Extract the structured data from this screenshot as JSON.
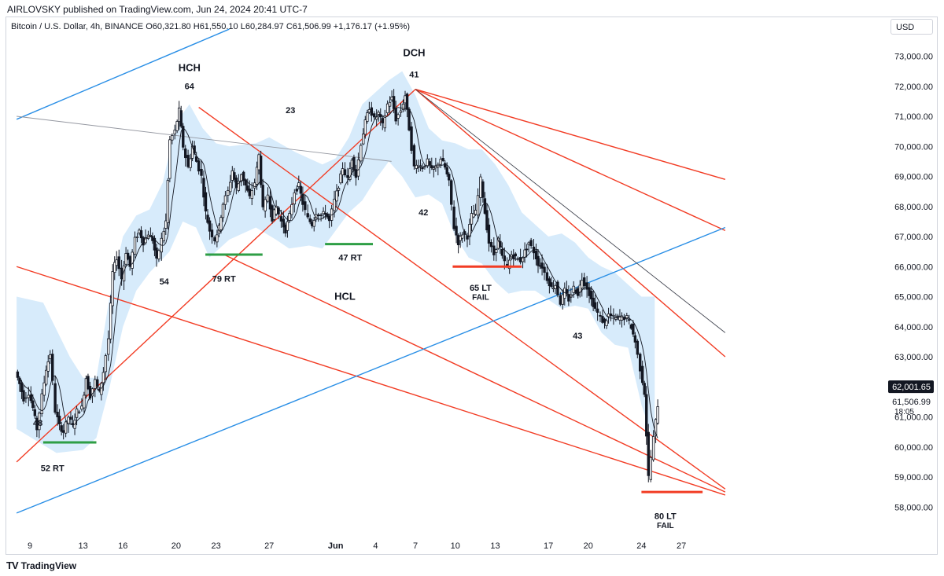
{
  "header": {
    "published": "AIRLOVSKY published on TradingView.com, Jun 24, 2024 20:41 UTC-7",
    "symbol": "Bitcoin / U.S. Dollar, 4h, BINANCE",
    "open": "O60,321.80",
    "high": "H61,550.10",
    "low": "L60,284.97",
    "close": "C61,506.99",
    "change": "+1,176.17 (+1.95%)"
  },
  "currency_button": "USD",
  "footer": {
    "logo": "TV",
    "brand": "TradingView"
  },
  "colors": {
    "up": "#131722",
    "red_line": "#f23c24",
    "blue_line": "#2a8fe6",
    "band": "#d7ebfb",
    "green": "#2e9e45",
    "grey_line": "#9598a1",
    "dark_line": "#434651"
  },
  "chart_data": {
    "type": "candlestick",
    "ylim": [
      57200,
      74200
    ],
    "y_ticks": [
      "73,000.00",
      "72,000.00",
      "71,000.00",
      "70,000.00",
      "69,000.00",
      "68,000.00",
      "67,000.00",
      "66,000.00",
      "65,000.00",
      "64,000.00",
      "63,000.00",
      "61,000.00",
      "60,000.00",
      "59,000.00",
      "58,000.00"
    ],
    "y_tick_values": [
      73000,
      72000,
      71000,
      70000,
      69000,
      68000,
      67000,
      66000,
      65000,
      64000,
      63000,
      61000,
      60000,
      59000,
      58000
    ],
    "x_ticks": [
      "9",
      "13",
      "16",
      "20",
      "23",
      "27",
      "Jun",
      "4",
      "7",
      "10",
      "13",
      "17",
      "20",
      "24",
      "27"
    ],
    "x_tick_days": [
      9,
      13,
      16,
      20,
      23,
      27,
      32,
      35,
      38,
      41,
      44,
      48,
      51,
      55,
      58
    ],
    "price_labels": {
      "last": "62,001.65",
      "current": "61,506.99",
      "countdown": "18:05",
      "last_value": 62001.65,
      "current_value": 61506.99
    },
    "price_path": [
      [
        8.0,
        62500
      ],
      [
        8.3,
        62100
      ],
      [
        8.6,
        61600
      ],
      [
        9.0,
        61800
      ],
      [
        9.3,
        61300
      ],
      [
        9.6,
        60600
      ],
      [
        10.0,
        61700
      ],
      [
        10.3,
        62600
      ],
      [
        10.6,
        63100
      ],
      [
        11.0,
        61200
      ],
      [
        11.3,
        60700
      ],
      [
        11.6,
        60500
      ],
      [
        12.0,
        61000
      ],
      [
        12.3,
        60700
      ],
      [
        12.6,
        61200
      ],
      [
        13.0,
        61300
      ],
      [
        13.3,
        62300
      ],
      [
        13.6,
        61700
      ],
      [
        14.0,
        62200
      ],
      [
        14.3,
        61800
      ],
      [
        14.6,
        62500
      ],
      [
        15.0,
        63600
      ],
      [
        15.3,
        65800
      ],
      [
        15.6,
        66300
      ],
      [
        16.0,
        65600
      ],
      [
        16.3,
        66500
      ],
      [
        16.6,
        66000
      ],
      [
        17.0,
        66900
      ],
      [
        17.3,
        67200
      ],
      [
        17.6,
        66800
      ],
      [
        18.0,
        67100
      ],
      [
        18.3,
        66900
      ],
      [
        18.6,
        66200
      ],
      [
        19.0,
        66900
      ],
      [
        19.3,
        67500
      ],
      [
        19.6,
        70200
      ],
      [
        20.0,
        70500
      ],
      [
        20.3,
        71200
      ],
      [
        20.6,
        70000
      ],
      [
        21.0,
        69300
      ],
      [
        21.3,
        70000
      ],
      [
        21.6,
        69500
      ],
      [
        22.0,
        69000
      ],
      [
        22.3,
        67800
      ],
      [
        22.6,
        67200
      ],
      [
        23.0,
        66900
      ],
      [
        23.3,
        67300
      ],
      [
        23.6,
        68100
      ],
      [
        24.0,
        68500
      ],
      [
        24.3,
        69200
      ],
      [
        24.6,
        68600
      ],
      [
        25.0,
        69100
      ],
      [
        25.3,
        68700
      ],
      [
        25.6,
        68300
      ],
      [
        26.0,
        68800
      ],
      [
        26.3,
        69700
      ],
      [
        26.6,
        67900
      ],
      [
        27.0,
        68400
      ],
      [
        27.3,
        67600
      ],
      [
        27.6,
        68000
      ],
      [
        28.0,
        67500
      ],
      [
        28.3,
        67200
      ],
      [
        28.6,
        67700
      ],
      [
        29.0,
        68500
      ],
      [
        29.3,
        68700
      ],
      [
        29.6,
        68100
      ],
      [
        30.0,
        67600
      ],
      [
        30.3,
        67400
      ],
      [
        30.6,
        67800
      ],
      [
        31.0,
        67700
      ],
      [
        31.3,
        67800
      ],
      [
        31.6,
        67500
      ],
      [
        32.0,
        68200
      ],
      [
        32.3,
        68700
      ],
      [
        32.6,
        69300
      ],
      [
        33.0,
        68900
      ],
      [
        33.3,
        69600
      ],
      [
        33.6,
        69000
      ],
      [
        34.0,
        70100
      ],
      [
        34.3,
        70800
      ],
      [
        34.6,
        71300
      ],
      [
        35.0,
        70900
      ],
      [
        35.3,
        71100
      ],
      [
        35.6,
        70700
      ],
      [
        36.0,
        71400
      ],
      [
        36.3,
        71600
      ],
      [
        36.6,
        70900
      ],
      [
        37.0,
        71200
      ],
      [
        37.3,
        71700
      ],
      [
        37.6,
        70600
      ],
      [
        38.0,
        69300
      ],
      [
        38.3,
        69400
      ],
      [
        38.6,
        69300
      ],
      [
        39.0,
        69500
      ],
      [
        39.3,
        69200
      ],
      [
        39.6,
        69300
      ],
      [
        40.0,
        69600
      ],
      [
        40.3,
        69300
      ],
      [
        40.6,
        68800
      ],
      [
        41.0,
        67300
      ],
      [
        41.3,
        66800
      ],
      [
        41.6,
        67100
      ],
      [
        42.0,
        67000
      ],
      [
        42.3,
        67700
      ],
      [
        42.6,
        67800
      ],
      [
        43.0,
        68900
      ],
      [
        43.3,
        67800
      ],
      [
        43.6,
        66800
      ],
      [
        44.0,
        66400
      ],
      [
        44.3,
        66900
      ],
      [
        44.6,
        66300
      ],
      [
        45.0,
        66000
      ],
      [
        45.3,
        66400
      ],
      [
        45.6,
        66300
      ],
      [
        46.0,
        66200
      ],
      [
        46.3,
        66500
      ],
      [
        46.6,
        66800
      ],
      [
        47.0,
        66500
      ],
      [
        47.3,
        66100
      ],
      [
        47.6,
        66000
      ],
      [
        48.0,
        65600
      ],
      [
        48.3,
        65300
      ],
      [
        48.6,
        65400
      ],
      [
        49.0,
        64800
      ],
      [
        49.3,
        65200
      ],
      [
        49.6,
        64900
      ],
      [
        50.0,
        65300
      ],
      [
        50.3,
        65100
      ],
      [
        50.6,
        65600
      ],
      [
        51.0,
        65300
      ],
      [
        51.3,
        64900
      ],
      [
        51.6,
        64600
      ],
      [
        52.0,
        64300
      ],
      [
        52.3,
        64100
      ],
      [
        52.6,
        64400
      ],
      [
        53.0,
        64300
      ],
      [
        53.3,
        64300
      ],
      [
        53.6,
        64300
      ],
      [
        54.0,
        64300
      ],
      [
        54.3,
        64000
      ],
      [
        54.6,
        63500
      ],
      [
        55.0,
        62600
      ],
      [
        55.3,
        61800
      ],
      [
        55.6,
        59000
      ],
      [
        56.0,
        60300
      ],
      [
        56.3,
        61400
      ]
    ],
    "band_lower": [
      [
        8.0,
        60600
      ],
      [
        11.0,
        59800
      ],
      [
        13.0,
        59900
      ],
      [
        14.0,
        60300
      ],
      [
        15.0,
        62000
      ],
      [
        16.0,
        64000
      ],
      [
        17.0,
        65200
      ],
      [
        18.0,
        65800
      ],
      [
        19.5,
        66500
      ],
      [
        20.5,
        67500
      ],
      [
        21.5,
        67300
      ],
      [
        22.5,
        66300
      ],
      [
        24.0,
        66900
      ],
      [
        26.0,
        67300
      ],
      [
        27.5,
        66900
      ],
      [
        28.5,
        66600
      ],
      [
        30.0,
        66700
      ],
      [
        31.0,
        66600
      ],
      [
        32.0,
        67200
      ],
      [
        33.0,
        67800
      ],
      [
        34.0,
        68200
      ],
      [
        35.0,
        68900
      ],
      [
        36.0,
        69500
      ],
      [
        37.0,
        69000
      ],
      [
        38.0,
        68300
      ],
      [
        39.0,
        68400
      ],
      [
        40.0,
        68100
      ],
      [
        41.0,
        67000
      ],
      [
        42.0,
        66300
      ],
      [
        43.0,
        66100
      ],
      [
        44.0,
        65500
      ],
      [
        45.0,
        65100
      ],
      [
        46.0,
        65200
      ],
      [
        47.0,
        65200
      ],
      [
        48.0,
        64900
      ],
      [
        49.0,
        64600
      ],
      [
        50.0,
        64700
      ],
      [
        51.0,
        64600
      ],
      [
        52.0,
        63800
      ],
      [
        53.0,
        63400
      ],
      [
        54.0,
        63300
      ],
      [
        55.0,
        61400
      ],
      [
        56.0,
        60100
      ]
    ],
    "band_upper": [
      [
        8.0,
        65000
      ],
      [
        10.0,
        64800
      ],
      [
        12.0,
        63000
      ],
      [
        13.0,
        62300
      ],
      [
        14.0,
        62300
      ],
      [
        15.0,
        65000
      ],
      [
        16.0,
        67000
      ],
      [
        17.0,
        67700
      ],
      [
        18.0,
        67900
      ],
      [
        19.0,
        68800
      ],
      [
        20.0,
        70800
      ],
      [
        21.0,
        71400
      ],
      [
        22.0,
        70600
      ],
      [
        23.0,
        70100
      ],
      [
        24.0,
        70000
      ],
      [
        26.0,
        70100
      ],
      [
        27.0,
        70300
      ],
      [
        29.0,
        69800
      ],
      [
        31.0,
        69400
      ],
      [
        32.0,
        69600
      ],
      [
        33.0,
        70300
      ],
      [
        34.0,
        71400
      ],
      [
        35.0,
        71800
      ],
      [
        36.0,
        72200
      ],
      [
        37.0,
        72500
      ],
      [
        38.0,
        71700
      ],
      [
        39.0,
        70600
      ],
      [
        40.0,
        70200
      ],
      [
        41.0,
        70100
      ],
      [
        42.0,
        69900
      ],
      [
        43.0,
        69900
      ],
      [
        44.0,
        69400
      ],
      [
        45.0,
        68700
      ],
      [
        46.0,
        67800
      ],
      [
        47.0,
        67400
      ],
      [
        48.0,
        67000
      ],
      [
        49.0,
        67100
      ],
      [
        50.0,
        66800
      ],
      [
        51.0,
        66300
      ],
      [
        52.0,
        66000
      ],
      [
        53.0,
        65800
      ],
      [
        54.0,
        65400
      ],
      [
        55.0,
        65000
      ],
      [
        56.0,
        65000
      ]
    ],
    "lines": [
      {
        "color": "red",
        "p1": [
          8.0,
          59500
        ],
        "p2": [
          38.0,
          71900
        ]
      },
      {
        "color": "red",
        "p1": [
          8.0,
          66000
        ],
        "p2": [
          61.3,
          58400
        ]
      },
      {
        "color": "red",
        "p1": [
          21.7,
          71300
        ],
        "p2": [
          61.3,
          58600
        ]
      },
      {
        "color": "red",
        "p1": [
          23.6,
          66400
        ],
        "p2": [
          61.3,
          58500
        ]
      },
      {
        "color": "red",
        "p1": [
          38.0,
          71900
        ],
        "p2": [
          61.3,
          63000
        ]
      },
      {
        "color": "red",
        "p1": [
          38.0,
          71900
        ],
        "p2": [
          61.3,
          67200
        ]
      },
      {
        "color": "red",
        "p1": [
          38.0,
          71900
        ],
        "p2": [
          61.3,
          68900
        ]
      },
      {
        "color": "blue",
        "p1": [
          8.0,
          57800
        ],
        "p2": [
          61.3,
          67300
        ]
      },
      {
        "color": "blue",
        "p1": [
          8.0,
          70900
        ],
        "p2": [
          24.0,
          73900
        ]
      },
      {
        "color": "grey",
        "p1": [
          8.0,
          71000
        ],
        "p2": [
          36.2,
          69500
        ]
      },
      {
        "color": "dark",
        "p1": [
          38.0,
          71900
        ],
        "p2": [
          61.3,
          63800
        ]
      }
    ],
    "support_marks": [
      {
        "color": "green",
        "d1": 10.0,
        "d2": 14.0,
        "price": 60150
      },
      {
        "color": "green",
        "d1": 22.2,
        "d2": 26.5,
        "price": 66400
      },
      {
        "color": "green",
        "d1": 31.2,
        "d2": 34.8,
        "price": 66750
      },
      {
        "color": "red",
        "d1": 40.8,
        "d2": 46.0,
        "price": 66000
      },
      {
        "color": "red",
        "d1": 55.0,
        "d2": 59.6,
        "price": 58500
      }
    ],
    "annotations": [
      {
        "text": "HCH",
        "day": 21.0,
        "price": 72500,
        "size": 13
      },
      {
        "text": "64",
        "day": 21.0,
        "price": 71900,
        "size": 11
      },
      {
        "text": "23",
        "day": 28.6,
        "price": 71100,
        "size": 11
      },
      {
        "text": "DCH",
        "day": 37.9,
        "price": 73000,
        "size": 13
      },
      {
        "text": "41",
        "day": 37.9,
        "price": 72300,
        "size": 11
      },
      {
        "text": "42",
        "day": 38.6,
        "price": 67700,
        "size": 11
      },
      {
        "text": "54",
        "day": 19.1,
        "price": 65400,
        "size": 11
      },
      {
        "text": "79 RT",
        "day": 23.6,
        "price": 65500,
        "size": 11
      },
      {
        "text": "47 RT",
        "day": 33.1,
        "price": 66200,
        "size": 11
      },
      {
        "text": "HCL",
        "day": 32.7,
        "price": 64900,
        "size": 13
      },
      {
        "text": "65 LT",
        "day": 42.9,
        "price": 65200,
        "size": 11
      },
      {
        "text": "FAIL",
        "day": 42.9,
        "price": 64900,
        "size": 10
      },
      {
        "text": "43",
        "day": 50.2,
        "price": 63600,
        "size": 11
      },
      {
        "text": "48",
        "day": 9.6,
        "price": 60700,
        "size": 11
      },
      {
        "text": "52 RT",
        "day": 10.7,
        "price": 59200,
        "size": 11
      },
      {
        "text": "80 LT",
        "day": 56.8,
        "price": 57600,
        "size": 11
      },
      {
        "text": "FAIL",
        "day": 56.8,
        "price": 57300,
        "size": 10
      }
    ]
  }
}
